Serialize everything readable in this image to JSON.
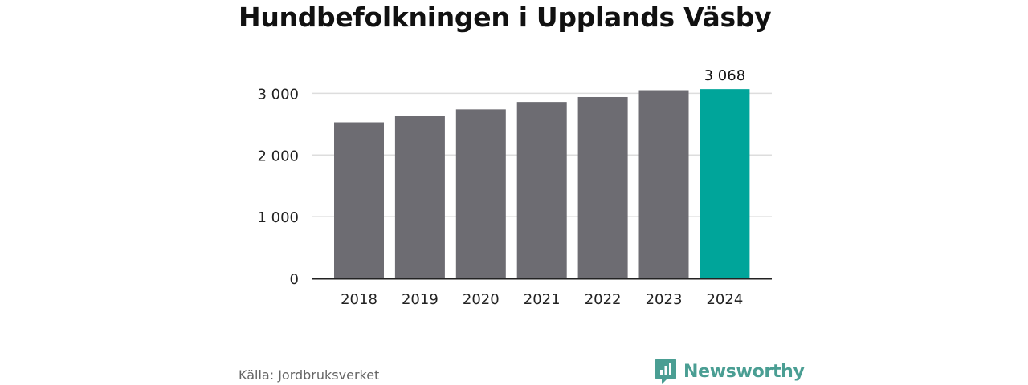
{
  "header": {
    "title": "Hundbefolkningen i Upplands Väsby"
  },
  "footer": {
    "source": "Källa: Jordbruksverket",
    "brand": "Newsworthy"
  },
  "colors": {
    "bar": "#6d6c72",
    "highlight": "#00a59a",
    "grid": "#dddddd",
    "brand": "#4a9e93"
  },
  "chart_data": {
    "type": "bar",
    "categories": [
      "2018",
      "2019",
      "2020",
      "2021",
      "2022",
      "2023",
      "2024"
    ],
    "values": [
      2530,
      2630,
      2740,
      2860,
      2940,
      3050,
      3068
    ],
    "highlight_index": 6,
    "data_labels": [
      {
        "index": 6,
        "text": "3 068"
      }
    ],
    "title": "Hundbefolkningen i Upplands Väsby",
    "xlabel": "",
    "ylabel": "",
    "ylim": [
      0,
      3200
    ],
    "yticks": [
      0,
      1000,
      2000,
      3000
    ],
    "ytick_labels": [
      "0",
      "1 000",
      "2 000",
      "3 000"
    ],
    "grid": true
  }
}
